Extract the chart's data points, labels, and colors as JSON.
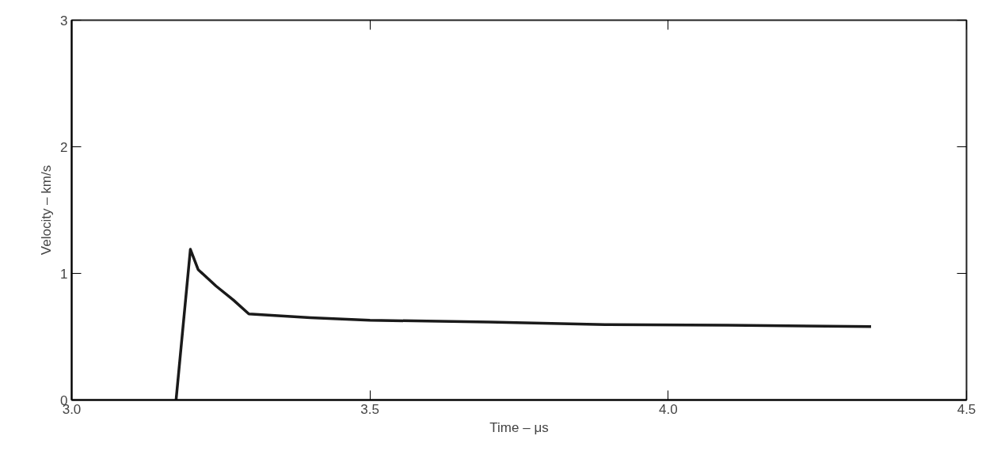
{
  "chart_data": {
    "type": "line",
    "xlabel": "Time – μs",
    "ylabel": "Velocity – km/s",
    "x": [
      3.175,
      3.199,
      3.212,
      3.242,
      3.271,
      3.297,
      3.4,
      3.5,
      3.7,
      3.9,
      4.1,
      4.34
    ],
    "series": [
      {
        "color": "#1a1a1a",
        "values": [
          0,
          1.19,
          1.03,
          0.9,
          0.79,
          0.68,
          0.65,
          0.63,
          0.615,
          0.595,
          0.59,
          0.58
        ]
      }
    ],
    "xlim": [
      3.0,
      4.5
    ],
    "ylim": [
      0,
      3
    ],
    "xticks": [
      {
        "value": 3.0,
        "label": "3.0"
      },
      {
        "value": 3.5,
        "label": "3.5"
      },
      {
        "value": 4.0,
        "label": "4.0"
      },
      {
        "value": 4.5,
        "label": "4.5"
      }
    ],
    "yticks": [
      0,
      1,
      2,
      3
    ],
    "grid": false,
    "marker": "none",
    "line_style": "solid"
  }
}
